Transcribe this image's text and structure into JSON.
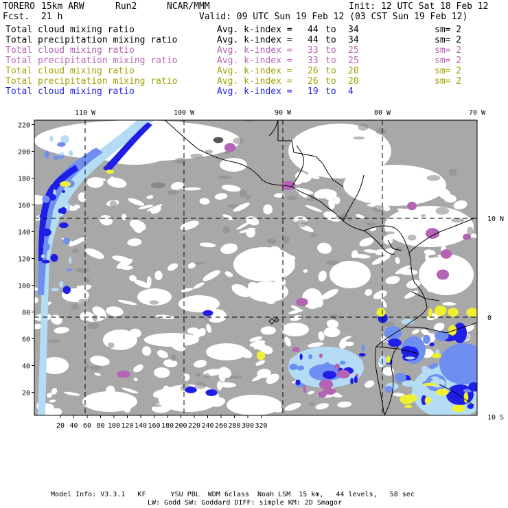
{
  "header": {
    "model": "TORERO",
    "resolution": "15km ARW",
    "run": "Run2",
    "center": "NCAR/MMM",
    "init": "Init: 12 UTC Sat 18 Feb 12",
    "fcst_label": "Fcst.",
    "fcst_value": "21 h",
    "valid": "Valid: 09 UTC Sun 19 Feb 12 (03 CST Sun 19 Feb 12)"
  },
  "legend": [
    {
      "field": "Total cloud mixing ratio",
      "k_label": "Avg. k-index =",
      "k_from": "44",
      "to": "to",
      "k_to": "34",
      "sm": "sm= 2",
      "color": "#000000"
    },
    {
      "field": "Total precipitation mixing ratio",
      "k_label": "Avg. k-index =",
      "k_from": "44",
      "to": "to",
      "k_to": "34",
      "sm": "sm= 2",
      "color": "#000000"
    },
    {
      "field": "Total cloud mixing ratio",
      "k_label": "Avg. k-index =",
      "k_from": "33",
      "to": "to",
      "k_to": "25",
      "sm": "sm= 2",
      "color": "#b464b4"
    },
    {
      "field": "Total precipitation mixing ratio",
      "k_label": "Avg. k-index =",
      "k_from": "33",
      "to": "to",
      "k_to": "25",
      "sm": "sm= 2",
      "color": "#b464b4"
    },
    {
      "field": "Total cloud mixing ratio",
      "k_label": "Avg. k-index =",
      "k_from": "26",
      "to": "to",
      "k_to": "20",
      "sm": "sm= 2",
      "color": "#a0a000"
    },
    {
      "field": "Total precipitation mixing ratio",
      "k_label": "Avg. k-index =",
      "k_from": "26",
      "to": "to",
      "k_to": "20",
      "sm": "sm= 2",
      "color": "#a0a000"
    },
    {
      "field": "Total cloud mixing ratio",
      "k_label": "Avg. k-index =",
      "k_from": "19",
      "to": "to",
      "k_to": "4",
      "sm": "",
      "color": "#1e1ee6"
    }
  ],
  "map": {
    "lon_labels": [
      "110 W",
      "100 W",
      "90 W",
      "80 W",
      "70 W"
    ],
    "lat_labels": [
      "10 N",
      "0",
      "10 S"
    ],
    "y_ticks": [
      "20",
      "40",
      "60",
      "80",
      "100",
      "120",
      "140",
      "160",
      "180",
      "200",
      "220"
    ],
    "x_ticks": [
      "20",
      "40",
      "60",
      "80",
      "100",
      "120",
      "140",
      "160",
      "180",
      "200",
      "220",
      "240",
      "260",
      "280",
      "300",
      "320"
    ],
    "colors": {
      "land_gray": "#a8a8a8",
      "ice_blue": "#b4dcf5",
      "mid_blue": "#6e8ef0",
      "deep_blue": "#1e1ee6",
      "purple": "#b464b4",
      "yellow": "#f0f032"
    }
  },
  "footer": {
    "line1": "Model Info: V3.3.1   KF      YSU PBL  WDM 6class  Noah LSM  15 km,   44 levels,   58 sec",
    "line2": "LW: Godd SW: Goddard DIFF: simple KM: 2D Smagor"
  }
}
